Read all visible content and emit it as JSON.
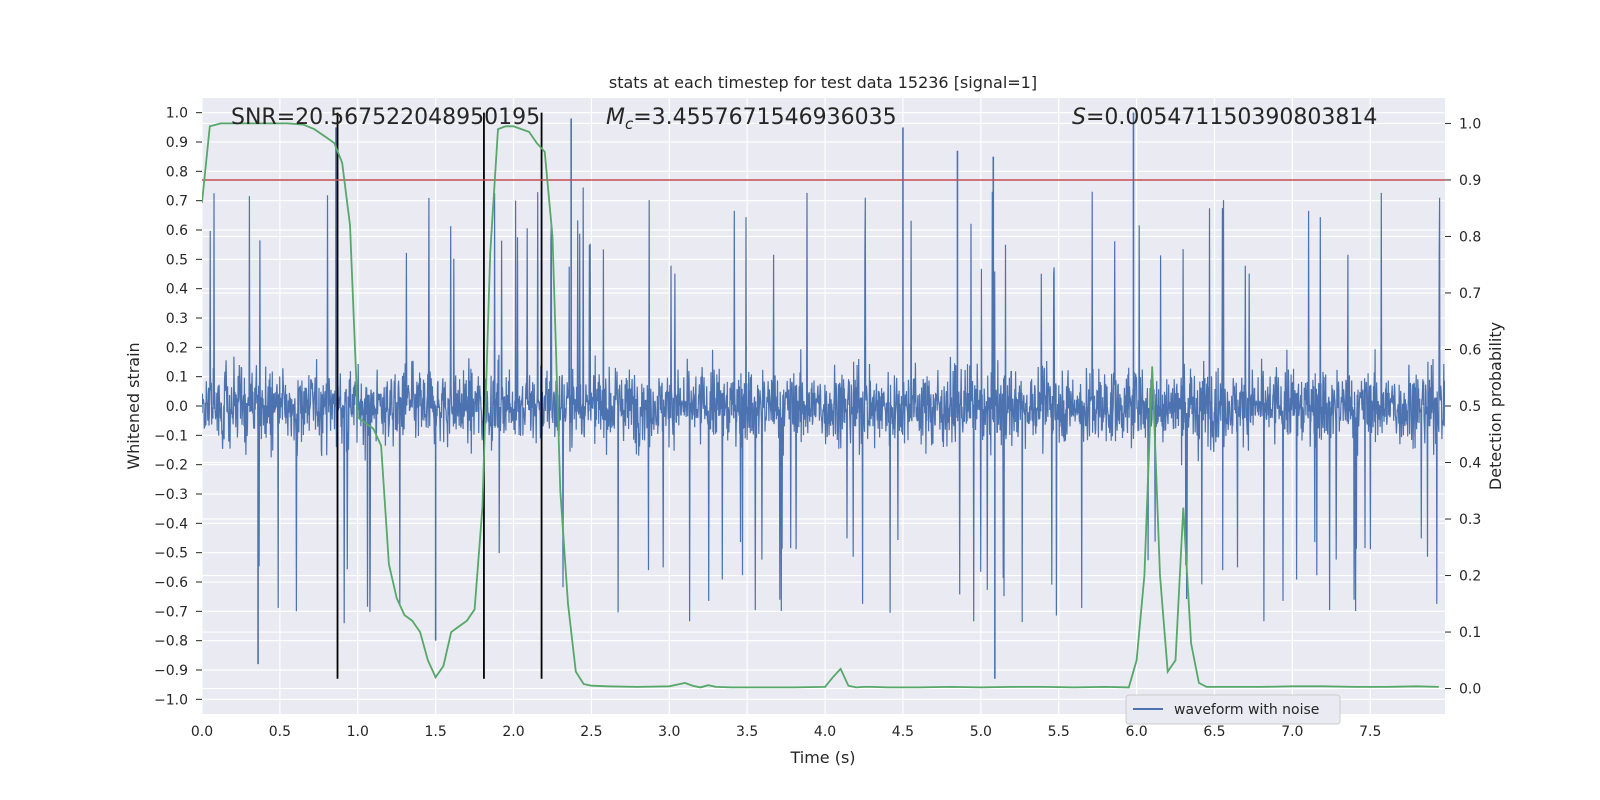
{
  "chart_data": {
    "type": "line",
    "title": "stats at each timestep for test data 15236 [signal=1]",
    "xlabel": "Time (s)",
    "ylabel_left": "Whitened strain",
    "ylabel_right": "Detection probability",
    "xlim": [
      0.0,
      7.98
    ],
    "ylim_left": [
      -1.05,
      1.05
    ],
    "ylim_right": [
      -0.045,
      1.045
    ],
    "x_ticks": [
      "0.0",
      "0.5",
      "1.0",
      "1.5",
      "2.0",
      "2.5",
      "3.0",
      "3.5",
      "4.0",
      "4.5",
      "5.0",
      "5.5",
      "6.0",
      "6.5",
      "7.0",
      "7.5"
    ],
    "y_ticks_left": [
      "1.0",
      "0.9",
      "0.8",
      "0.7",
      "0.6",
      "0.5",
      "0.4",
      "0.3",
      "0.2",
      "0.1",
      "0.0",
      "−0.1",
      "−0.2",
      "−0.3",
      "−0.4",
      "−0.5",
      "−0.6",
      "−0.7",
      "−0.8",
      "−0.9",
      "−1.0"
    ],
    "y_ticks_right": [
      "1.0",
      "0.9",
      "0.8",
      "0.7",
      "0.6",
      "0.5",
      "0.4",
      "0.3",
      "0.2",
      "0.1",
      "0.0"
    ],
    "annotations": {
      "snr": "SNR=20.567522048950195",
      "mc_symbol": "M",
      "mc_sub": "c",
      "mc_value": "=3.4557671546936035",
      "s_symbol": "S",
      "s_value": "=0.005471150390803814"
    },
    "legend": {
      "label": "waveform with noise",
      "placement": "lower-right"
    },
    "grid": true,
    "threshold_right": 0.9,
    "vertical_lines_x": [
      0.87,
      1.81,
      2.18
    ],
    "series": [
      {
        "name": "waveform with noise",
        "kind": "whitened-strain-noise",
        "color": "#4c72b0",
        "duration_s": 7.98,
        "notable_peaks": [
          [
            0.86,
            0.95
          ],
          [
            2.37,
            0.98
          ],
          [
            4.5,
            0.95
          ],
          [
            4.85,
            0.87
          ],
          [
            5.08,
            0.85
          ],
          [
            5.98,
            1.0
          ],
          [
            5.09,
            -0.93
          ],
          [
            0.36,
            -0.88
          ],
          [
            1.5,
            -0.8
          ]
        ]
      },
      {
        "kind": "detection-probability",
        "color": "#55a868",
        "x": [
          0.0,
          0.05,
          0.12,
          0.25,
          0.4,
          0.55,
          0.65,
          0.72,
          0.8,
          0.85,
          0.9,
          0.95,
          1.0,
          1.05,
          1.1,
          1.15,
          1.2,
          1.25,
          1.3,
          1.35,
          1.4,
          1.45,
          1.5,
          1.55,
          1.6,
          1.65,
          1.7,
          1.75,
          1.8,
          1.85,
          1.9,
          1.95,
          2.0,
          2.05,
          2.1,
          2.15,
          2.2,
          2.25,
          2.3,
          2.35,
          2.4,
          2.45,
          2.5,
          2.6,
          2.8,
          3.0,
          3.05,
          3.1,
          3.15,
          3.2,
          3.25,
          3.3,
          3.4,
          3.6,
          3.8,
          4.0,
          4.05,
          4.1,
          4.15,
          4.2,
          4.25,
          4.3,
          4.4,
          4.6,
          4.8,
          5.0,
          5.2,
          5.4,
          5.6,
          5.8,
          5.95,
          6.0,
          6.05,
          6.1,
          6.15,
          6.2,
          6.25,
          6.3,
          6.35,
          6.4,
          6.45,
          6.5,
          6.6,
          6.8,
          7.0,
          7.1,
          7.2,
          7.4,
          7.6,
          7.8,
          7.94
        ],
        "y": [
          0.86,
          0.995,
          1.0,
          1.0,
          1.0,
          1.0,
          0.998,
          0.99,
          0.975,
          0.965,
          0.93,
          0.82,
          0.48,
          0.47,
          0.46,
          0.43,
          0.22,
          0.16,
          0.13,
          0.12,
          0.1,
          0.05,
          0.02,
          0.04,
          0.1,
          0.11,
          0.12,
          0.14,
          0.32,
          0.77,
          0.99,
          0.995,
          0.995,
          0.99,
          0.985,
          0.965,
          0.95,
          0.8,
          0.35,
          0.15,
          0.03,
          0.008,
          0.005,
          0.004,
          0.003,
          0.004,
          0.007,
          0.01,
          0.005,
          0.002,
          0.006,
          0.003,
          0.002,
          0.002,
          0.002,
          0.003,
          0.02,
          0.035,
          0.005,
          0.002,
          0.003,
          0.003,
          0.002,
          0.002,
          0.003,
          0.002,
          0.003,
          0.003,
          0.002,
          0.003,
          0.002,
          0.05,
          0.2,
          0.57,
          0.2,
          0.03,
          0.05,
          0.32,
          0.08,
          0.01,
          0.003,
          0.003,
          0.003,
          0.003,
          0.004,
          0.004,
          0.004,
          0.003,
          0.003,
          0.004,
          0.003
        ]
      }
    ]
  }
}
